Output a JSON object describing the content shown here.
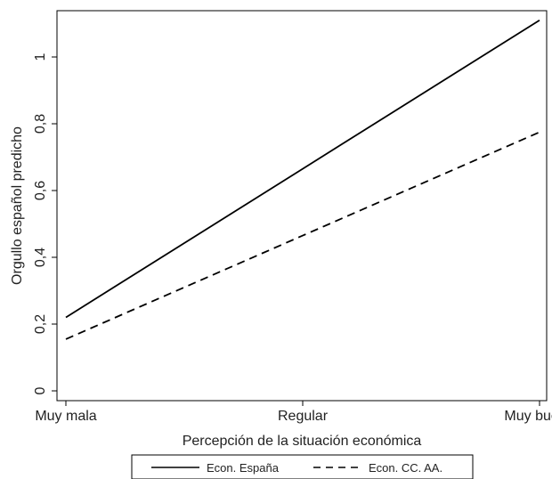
{
  "chart_data": {
    "type": "line",
    "title": "",
    "xlabel": "Percepción de la situación económica",
    "ylabel": "Orgullo español predicho",
    "categories": [
      "Muy mala",
      "Regular",
      "Muy buena"
    ],
    "xlim": [
      1,
      3
    ],
    "ylim": [
      0,
      1.2
    ],
    "y_ticks": [
      {
        "value": 0,
        "label": "0"
      },
      {
        "value": 0.2,
        "label": "0,2"
      },
      {
        "value": 0.4,
        "label": "0,4"
      },
      {
        "value": 0.6,
        "label": "0,6"
      },
      {
        "value": 0.8,
        "label": "0,8"
      },
      {
        "value": 1.0,
        "label": "1"
      }
    ],
    "grid": false,
    "legend_position": "bottom",
    "series": [
      {
        "name": "Econ. España",
        "style": "solid",
        "color": "#000000",
        "x": [
          1,
          2,
          3
        ],
        "values": [
          0.22,
          0.665,
          1.11
        ]
      },
      {
        "name": "Econ. CC. AA.",
        "style": "dashed",
        "color": "#000000",
        "x": [
          1,
          2,
          3
        ],
        "values": [
          0.155,
          0.465,
          0.775
        ]
      }
    ]
  }
}
